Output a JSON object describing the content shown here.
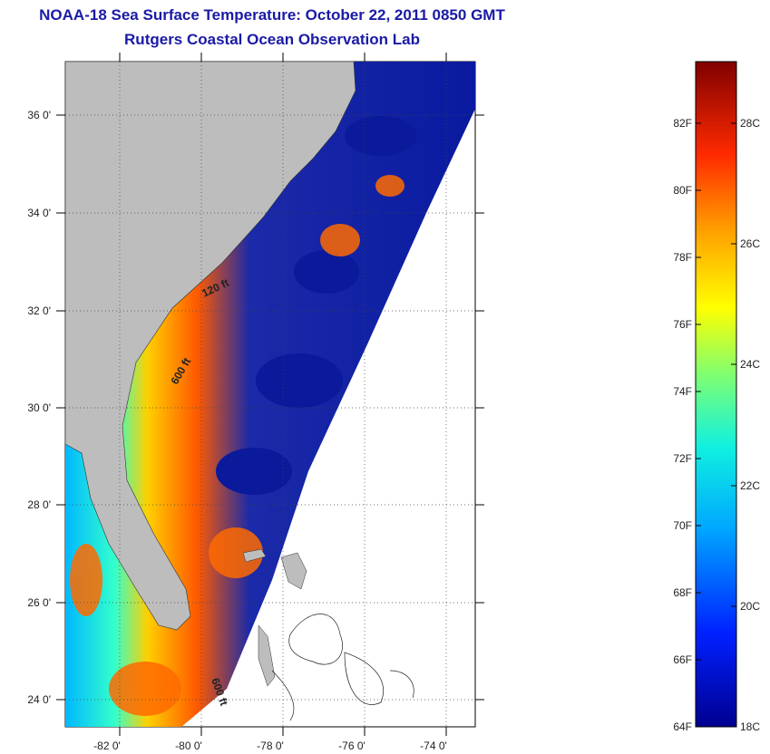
{
  "title": "NOAA-18 Sea Surface Temperature:  October 22, 2011 0850 GMT",
  "subtitle": "Rutgers Coastal Ocean Observation Lab",
  "map": {
    "lon_range": [
      -83,
      -73
    ],
    "lat_range": [
      23,
      37
    ],
    "lon_ticks": [
      {
        "value": -82,
        "label": "-82 0'"
      },
      {
        "value": -80,
        "label": "-80 0'"
      },
      {
        "value": -78,
        "label": "-78 0'"
      },
      {
        "value": -76,
        "label": "-76 0'"
      },
      {
        "value": -74,
        "label": "-74 0'"
      }
    ],
    "lat_ticks": [
      {
        "value": 36,
        "label": "36 0'"
      },
      {
        "value": 34,
        "label": "34 0'"
      },
      {
        "value": 32,
        "label": "32 0'"
      },
      {
        "value": 30,
        "label": "30 0'"
      },
      {
        "value": 28,
        "label": "28 0'"
      },
      {
        "value": 26,
        "label": "26 0'"
      },
      {
        "value": 24,
        "label": "24 0'"
      }
    ],
    "contour_labels": [
      "120 ft",
      "600 ft",
      "600 ft"
    ],
    "colors": {
      "land": "#bdbdbd",
      "grid": "#444444"
    }
  },
  "colorbar": {
    "fahrenheit": [
      {
        "value": 82,
        "label": "82F"
      },
      {
        "value": 80,
        "label": "80F"
      },
      {
        "value": 78,
        "label": "78F"
      },
      {
        "value": 76,
        "label": "76F"
      },
      {
        "value": 74,
        "label": "74F"
      },
      {
        "value": 72,
        "label": "72F"
      },
      {
        "value": 70,
        "label": "70F"
      },
      {
        "value": 68,
        "label": "68F"
      },
      {
        "value": 66,
        "label": "66F"
      },
      {
        "value": 64,
        "label": "64F"
      }
    ],
    "celsius": [
      {
        "value": 28,
        "label": "28C"
      },
      {
        "value": 26,
        "label": "26C"
      },
      {
        "value": 24,
        "label": "24C"
      },
      {
        "value": 22,
        "label": "22C"
      },
      {
        "value": 20,
        "label": "20C"
      },
      {
        "value": 18,
        "label": "18C"
      }
    ]
  }
}
